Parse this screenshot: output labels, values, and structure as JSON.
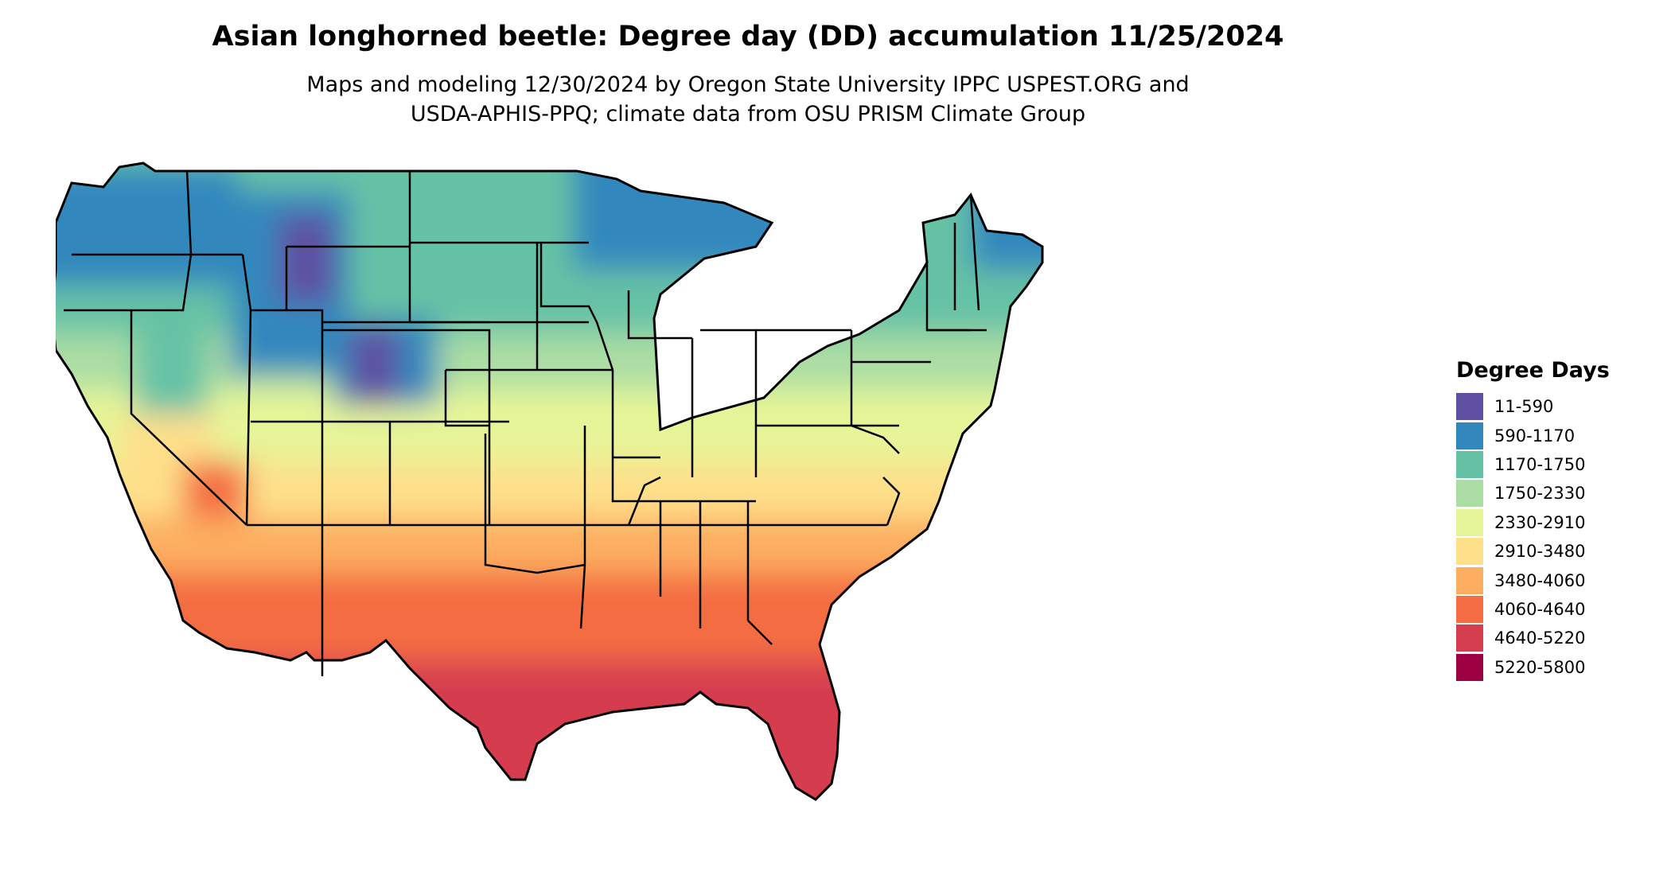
{
  "title": "Asian longhorned beetle: Degree day (DD) accumulation 11/25/2024",
  "subtitle_lines": [
    "Maps and modeling 12/30/2024 by Oregon State University IPPC USPEST.ORG and",
    "USDA-APHIS-PPQ; climate data from OSU PRISM Climate Group"
  ],
  "legend": {
    "title": "Degree Days",
    "items": [
      {
        "label": "11-590",
        "color": "#5E4FA2"
      },
      {
        "label": "590-1170",
        "color": "#3288BD"
      },
      {
        "label": "1170-1750",
        "color": "#66C2A5"
      },
      {
        "label": "1750-2330",
        "color": "#ABDDA4"
      },
      {
        "label": "2330-2910",
        "color": "#E6F598"
      },
      {
        "label": "2910-3480",
        "color": "#FEE08B"
      },
      {
        "label": "3480-4060",
        "color": "#FDAE61"
      },
      {
        "label": "4060-4640",
        "color": "#F46D43"
      },
      {
        "label": "4640-5220",
        "color": "#D53E4F"
      },
      {
        "label": "5220-5800",
        "color": "#9E0142"
      }
    ]
  }
}
